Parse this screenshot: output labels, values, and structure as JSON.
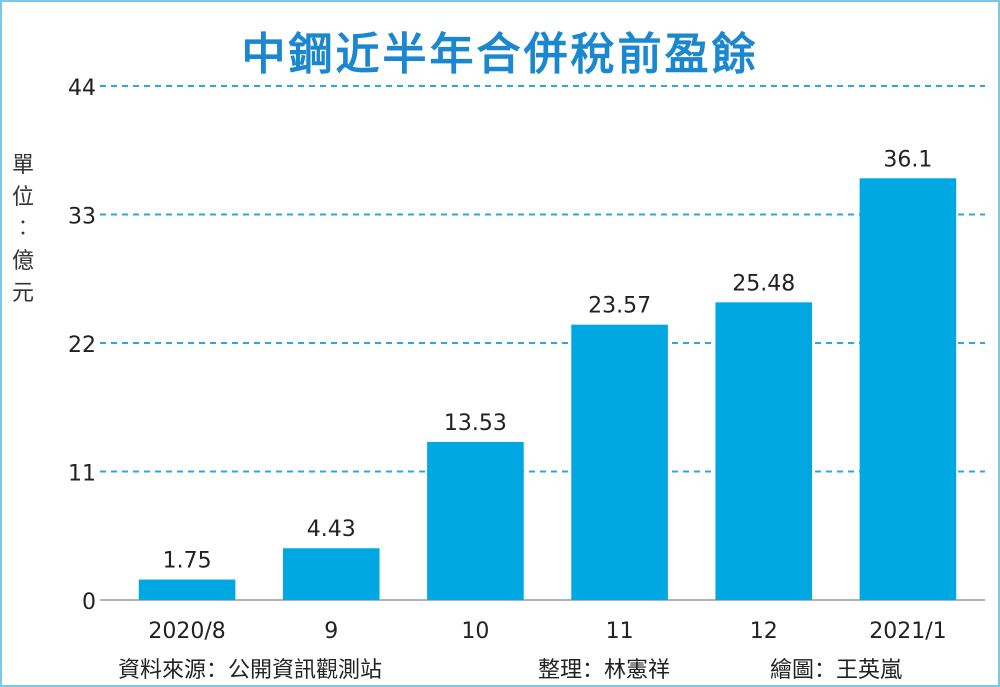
{
  "title": "中鋼近半年合併稅前盈餘",
  "unit_label": "單位：億元",
  "footer": {
    "source": "資料來源：公開資訊觀測站",
    "editor": "整理：林憲祥",
    "illustrator": "繪圖：王英嵐"
  },
  "colors": {
    "bar": "#00a8e1",
    "title": "#1a87cf",
    "grid": "#2fa8d8",
    "frame": "#79c8ea"
  },
  "chart_data": {
    "type": "bar",
    "title": "中鋼近半年合併稅前盈餘",
    "ylabel": "單位：億元",
    "xlabel": "",
    "categories": [
      "2020/8",
      "9",
      "10",
      "11",
      "12",
      "2021/1"
    ],
    "values": [
      1.75,
      4.43,
      13.53,
      23.57,
      25.48,
      36.1
    ],
    "value_labels": [
      "1.75",
      "4.43",
      "13.53",
      "23.57",
      "25.48",
      "36.1"
    ],
    "ylim": [
      0,
      44
    ],
    "yticks": [
      0,
      11,
      22,
      33,
      44
    ],
    "grid": true,
    "grid_style": "dashed horizontal",
    "legend": "none"
  }
}
